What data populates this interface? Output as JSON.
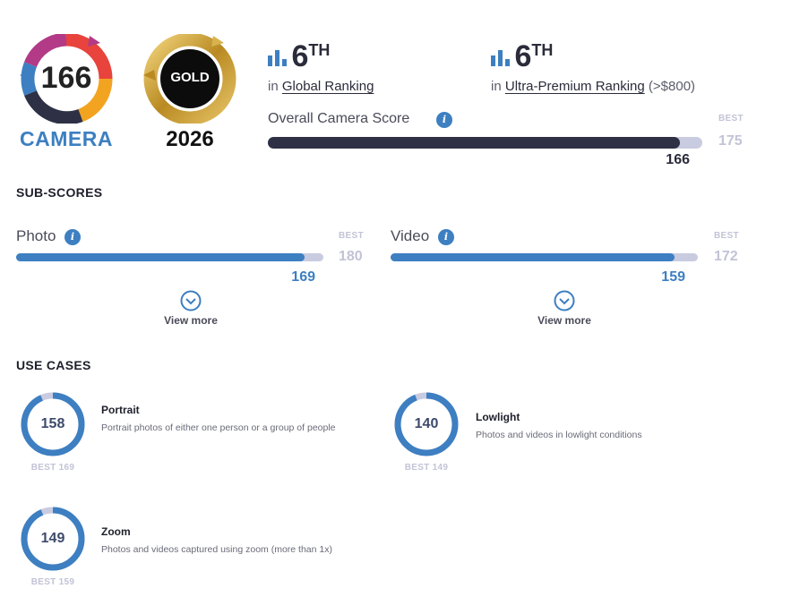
{
  "badge": {
    "score": "166",
    "label": "CAMERA",
    "gold_label": "GOLD",
    "gold_year": "2026"
  },
  "rankings": {
    "global": {
      "rank": "6",
      "suffix": "TH",
      "prefix": "in",
      "link": "Global Ranking",
      "note": ""
    },
    "segment": {
      "rank": "6",
      "suffix": "TH",
      "prefix": "in",
      "link": "Ultra-Premium Ranking",
      "note": "(>$800)"
    }
  },
  "overall": {
    "label": "Overall Camera Score",
    "score": 166,
    "score_text": "166",
    "best_label": "BEST",
    "best": 175,
    "best_text": "175"
  },
  "subscores": {
    "title": "SUB-SCORES",
    "items": [
      {
        "label": "Photo",
        "score": 169,
        "score_text": "169",
        "best": 180,
        "best_text": "180",
        "best_label": "BEST",
        "view_more": "View more"
      },
      {
        "label": "Video",
        "score": 159,
        "score_text": "159",
        "best": 172,
        "best_text": "172",
        "best_label": "BEST",
        "view_more": "View more"
      }
    ]
  },
  "use_cases": {
    "title": "USE CASES",
    "items": [
      {
        "name": "Portrait",
        "description": "Portrait photos of either one person or a group of people",
        "score": 158,
        "score_text": "158",
        "best": 169,
        "best_text": "BEST 169"
      },
      {
        "name": "Lowlight",
        "description": "Photos and videos in lowlight conditions",
        "score": 140,
        "score_text": "140",
        "best": 149,
        "best_text": "BEST 149"
      },
      {
        "name": "Zoom",
        "description": "Photos and videos captured using zoom (more than 1x)",
        "score": 149,
        "score_text": "149",
        "best": 159,
        "best_text": "BEST 159"
      }
    ]
  },
  "colors": {
    "accent": "#3d7fc1",
    "dark_bar": "#2e3145",
    "track": "#c9cbe0",
    "gold": "#c49a2c"
  }
}
